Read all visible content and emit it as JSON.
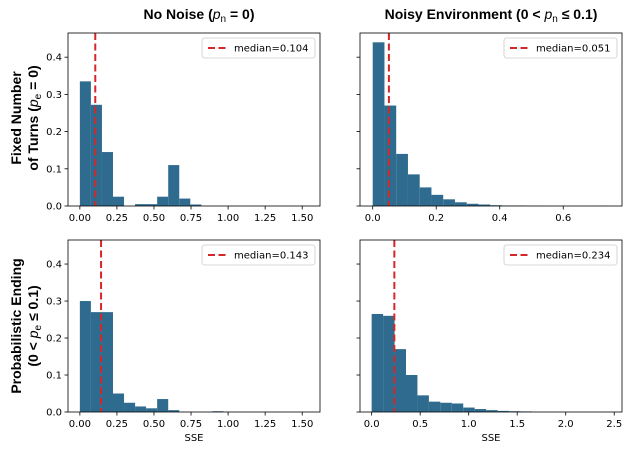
{
  "figure": {
    "col_titles": [
      {
        "main": "No Noise (",
        "italic": "p",
        "sub": "n",
        "rest": " = 0)"
      },
      {
        "main": "Noisy Environment (0 < ",
        "italic": "p",
        "sub": "n",
        "rest": " ≤ 0.1)"
      }
    ],
    "row_titles": [
      {
        "line1": "Fixed Number",
        "line2_main": "of Turns (",
        "italic": "p",
        "sub": "e",
        "line2_rest": " = 0)"
      },
      {
        "line1": "Probabilistic Ending",
        "line2_main": "(0 < ",
        "italic": "p",
        "sub": "e",
        "line2_rest": " ≤ 0.1)"
      }
    ],
    "bar_color": "#2e6b8e",
    "median_color": "#d62728"
  },
  "chart_data": [
    {
      "type": "bar",
      "panel": "top-left",
      "xlabel": "",
      "ylabel": "",
      "xlim": [
        -0.08,
        1.62
      ],
      "ylim": [
        0,
        0.465
      ],
      "xticks": [
        "0.00",
        "0.25",
        "0.50",
        "0.75",
        "1.00",
        "1.25",
        "1.50"
      ],
      "xtick_values": [
        0,
        0.25,
        0.5,
        0.75,
        1.0,
        1.25,
        1.5
      ],
      "yticks": [
        "0.0",
        "0.1",
        "0.2",
        "0.3",
        "0.4"
      ],
      "ytick_values": [
        0,
        0.1,
        0.2,
        0.3,
        0.4
      ],
      "show_yticklabels": true,
      "bin_start": 0.0,
      "bin_width": 0.0745,
      "values": [
        0.335,
        0.272,
        0.145,
        0.025,
        0.0,
        0.005,
        0.005,
        0.025,
        0.11,
        0.02,
        0.004,
        0.0,
        0.0,
        0.0,
        0.0,
        0.0,
        0.0,
        0.0,
        0.0,
        0.0
      ],
      "median": 0.104,
      "legend": "median=0.104",
      "legend_position": "top-right"
    },
    {
      "type": "bar",
      "panel": "top-right",
      "xlabel": "",
      "ylabel": "",
      "xlim": [
        -0.04,
        0.785
      ],
      "ylim": [
        0,
        0.465
      ],
      "xticks": [
        "0.0",
        "0.2",
        "0.4",
        "0.6"
      ],
      "xtick_values": [
        0,
        0.2,
        0.4,
        0.6
      ],
      "yticks": [
        "0.0",
        "0.1",
        "0.2",
        "0.3",
        "0.4"
      ],
      "ytick_values": [
        0,
        0.1,
        0.2,
        0.3,
        0.4
      ],
      "show_yticklabels": false,
      "bin_start": 0.0,
      "bin_width": 0.037,
      "values": [
        0.44,
        0.27,
        0.14,
        0.085,
        0.05,
        0.03,
        0.018,
        0.01,
        0.006,
        0.004,
        0.002,
        0.001,
        0.001,
        0.0005,
        0.0005,
        0.0,
        0.0,
        0.0,
        0.0,
        0.0005
      ],
      "median": 0.051,
      "legend": "median=0.051",
      "legend_position": "top-right"
    },
    {
      "type": "bar",
      "panel": "bottom-left",
      "xlabel": "SSE",
      "ylabel": "",
      "xlim": [
        -0.08,
        1.62
      ],
      "ylim": [
        0,
        0.465
      ],
      "xticks": [
        "0.00",
        "0.25",
        "0.50",
        "0.75",
        "1.00",
        "1.25",
        "1.50"
      ],
      "xtick_values": [
        0,
        0.25,
        0.5,
        0.75,
        1.0,
        1.25,
        1.5
      ],
      "yticks": [
        "0.0",
        "0.1",
        "0.2",
        "0.3",
        "0.4"
      ],
      "ytick_values": [
        0,
        0.1,
        0.2,
        0.3,
        0.4
      ],
      "show_yticklabels": true,
      "bin_start": 0.0,
      "bin_width": 0.0745,
      "values": [
        0.3,
        0.27,
        0.27,
        0.05,
        0.025,
        0.015,
        0.01,
        0.035,
        0.005,
        0.0,
        0.0,
        0.0,
        0.002,
        0.0,
        0.0,
        0.0,
        0.0,
        0.0,
        0.0,
        0.0
      ],
      "median": 0.143,
      "legend": "median=0.143",
      "legend_position": "top-right"
    },
    {
      "type": "bar",
      "panel": "bottom-right",
      "xlabel": "SSE",
      "ylabel": "",
      "xlim": [
        -0.12,
        2.58
      ],
      "ylim": [
        0,
        0.465
      ],
      "xticks": [
        "0.0",
        "0.5",
        "1.0",
        "1.5",
        "2.0",
        "2.5"
      ],
      "xtick_values": [
        0,
        0.5,
        1.0,
        1.5,
        2.0,
        2.5
      ],
      "yticks": [
        "0.0",
        "0.1",
        "0.2",
        "0.3",
        "0.4"
      ],
      "ytick_values": [
        0,
        0.1,
        0.2,
        0.3,
        0.4
      ],
      "show_yticklabels": false,
      "bin_start": 0.0,
      "bin_width": 0.118,
      "values": [
        0.265,
        0.26,
        0.17,
        0.1,
        0.045,
        0.028,
        0.025,
        0.023,
        0.012,
        0.008,
        0.005,
        0.003,
        0.002,
        0.0015,
        0.0,
        0.0,
        0.0,
        0.0,
        0.0,
        0.0
      ],
      "median": 0.234,
      "legend": "median=0.234",
      "legend_position": "top-right"
    }
  ]
}
